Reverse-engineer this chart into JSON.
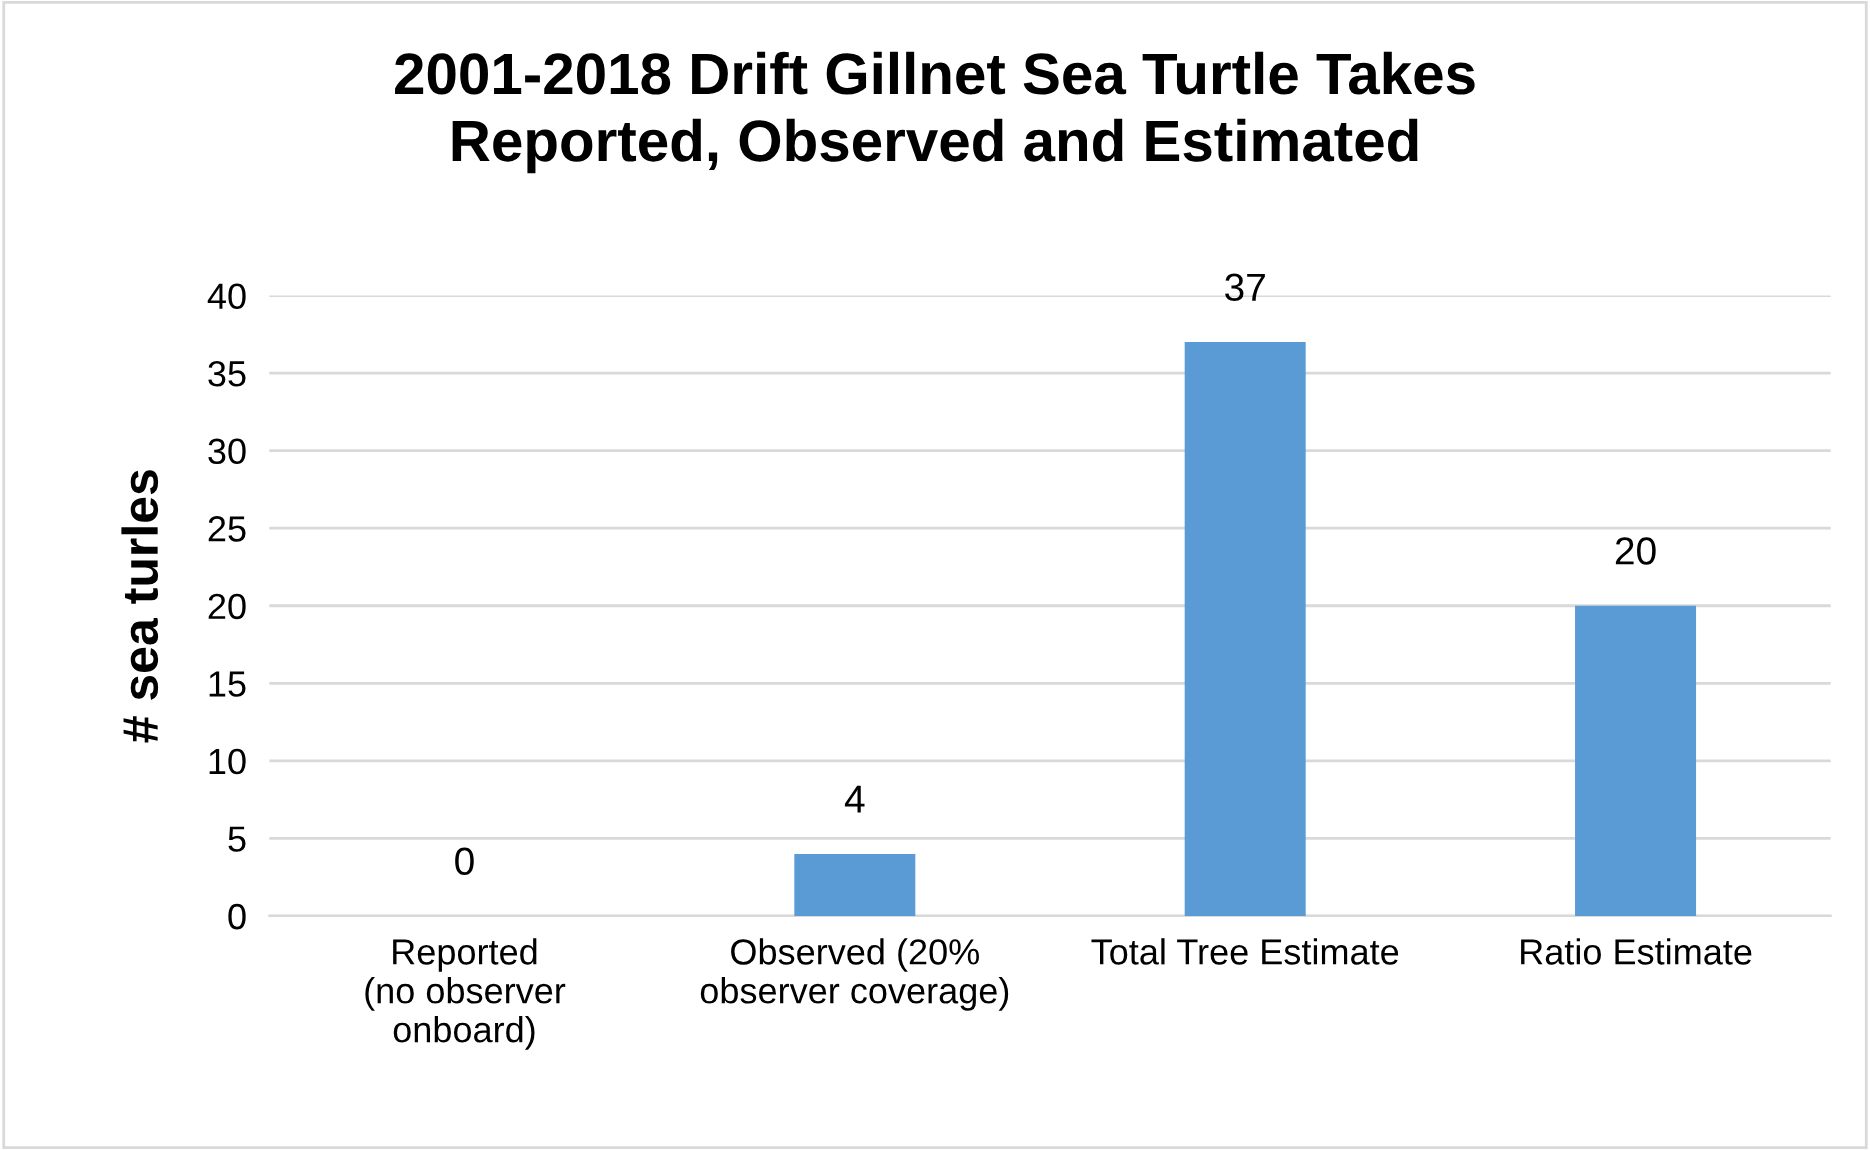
{
  "chart_data": {
    "type": "bar",
    "title": "2001-2018 Drift Gillnet Sea Turtle Takes\nReported, Observed and Estimated",
    "ylabel": "# sea turles",
    "categories": [
      "Reported\n(no observer\nonboard)",
      "Observed (20%\nobserver coverage)",
      "Total Tree Estimate",
      "Ratio Estimate"
    ],
    "values": [
      0,
      4,
      37,
      20
    ],
    "color": "#5b9bd5",
    "ylim": [
      0,
      40
    ],
    "yticks": [
      0,
      5,
      10,
      15,
      20,
      25,
      30,
      35,
      40
    ],
    "grid": "y",
    "data_labels": true
  }
}
